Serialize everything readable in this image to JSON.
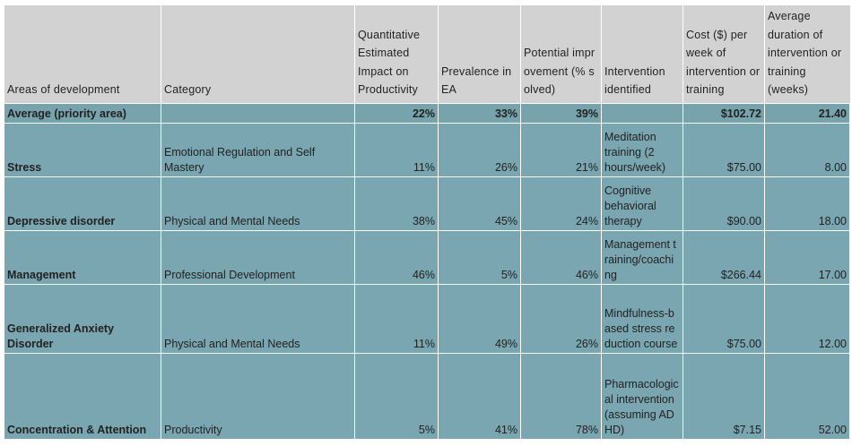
{
  "headers": {
    "area": "Areas of development",
    "category": "Category",
    "impact": "Quantitative Estimated Impact on Productivity",
    "prevalence": "Prevalence in EA",
    "improvement": "Potential improvement (% solved)",
    "intervention": "Intervention identified",
    "cost": "Cost ($) per week of intervention or training",
    "duration": "Average duration of intervention or training (weeks)"
  },
  "average": {
    "area": "Average (priority area)",
    "impact": "22%",
    "prevalence": "33%",
    "improvement": "39%",
    "cost": "$102.72",
    "duration": "21.40"
  },
  "rows": [
    {
      "area": "Stress",
      "category": "Emotional Regulation and Self Mastery",
      "impact": "11%",
      "prevalence": "26%",
      "improvement": "21%",
      "intervention": "Meditation training (2 hours/week)",
      "cost": "$75.00",
      "duration": "8.00"
    },
    {
      "area": "Depressive disorder",
      "category": "Physical and Mental Needs",
      "impact": "38%",
      "prevalence": "45%",
      "improvement": "24%",
      "intervention": "Cognitive behavioral therapy",
      "cost": "$90.00",
      "duration": "18.00"
    },
    {
      "area": "Management",
      "category": "Professional Development",
      "impact": "46%",
      "prevalence": "5%",
      "improvement": "46%",
      "intervention": "Management training/coaching",
      "cost": "$266.44",
      "duration": "17.00"
    },
    {
      "area": "Generalized Anxiety Disorder",
      "category": "Physical and Mental Needs",
      "impact": "11%",
      "prevalence": "49%",
      "improvement": "26%",
      "intervention": "Mindfulness-based stress reduction course",
      "cost": "$75.00",
      "duration": "12.00"
    },
    {
      "area": "Concentration & Attention",
      "category": "Productivity",
      "impact": "5%",
      "prevalence": "41%",
      "improvement": "78%",
      "intervention": "Pharmacological intervention (assuming ADHD)",
      "cost": "$7.15",
      "duration": "52.00"
    }
  ]
}
